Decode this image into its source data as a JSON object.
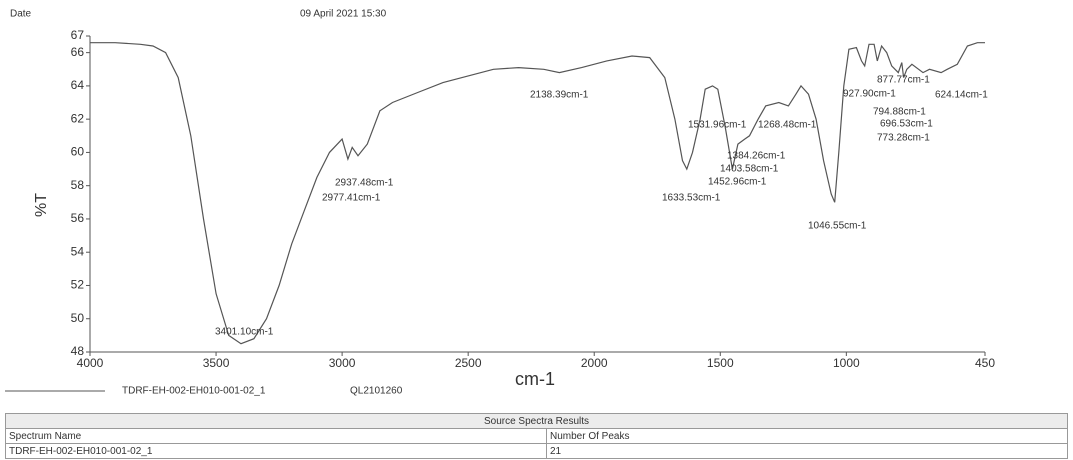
{
  "header": {
    "date_label": "Date",
    "date": "09 April 2021 15:30"
  },
  "chart_data": {
    "type": "line",
    "xlabel": "cm-1",
    "ylabel": "%T",
    "xlim": [
      4000,
      450
    ],
    "ylim": [
      48,
      67
    ],
    "xticks": [
      4000,
      3500,
      3000,
      2500,
      2000,
      1500,
      1000,
      450
    ],
    "yticks": [
      48,
      50,
      52,
      54,
      56,
      58,
      60,
      62,
      64,
      66,
      67
    ],
    "x": [
      4000,
      3900,
      3800,
      3750,
      3700,
      3650,
      3600,
      3550,
      3500,
      3450,
      3401,
      3350,
      3300,
      3250,
      3200,
      3150,
      3100,
      3050,
      3000,
      2977,
      2960,
      2937,
      2900,
      2850,
      2800,
      2700,
      2600,
      2500,
      2400,
      2300,
      2200,
      2138,
      2050,
      1950,
      1850,
      1780,
      1720,
      1680,
      1650,
      1633,
      1610,
      1580,
      1560,
      1531,
      1510,
      1480,
      1452,
      1430,
      1403,
      1384,
      1350,
      1320,
      1268,
      1230,
      1200,
      1180,
      1150,
      1120,
      1090,
      1060,
      1046,
      1030,
      1010,
      990,
      960,
      940,
      927,
      910,
      890,
      877,
      860,
      840,
      820,
      794,
      780,
      773,
      760,
      740,
      696,
      670,
      624,
      600,
      560,
      520,
      480,
      450
    ],
    "series": [
      {
        "name": "TDRF-EH-002-EH010-001-02_1",
        "color": "#555555",
        "values": [
          66.6,
          66.6,
          66.5,
          66.4,
          66.0,
          64.5,
          61,
          56,
          51.5,
          49,
          48.5,
          48.8,
          50,
          52,
          54.5,
          56.5,
          58.5,
          60,
          60.8,
          59.6,
          60.3,
          59.8,
          60.5,
          62.5,
          63,
          63.6,
          64.2,
          64.6,
          65,
          65.1,
          65,
          64.8,
          65.1,
          65.5,
          65.8,
          65.7,
          64.5,
          62,
          59.5,
          59,
          60,
          62,
          63.8,
          64,
          63.8,
          61.5,
          59,
          60.5,
          60.8,
          61,
          62,
          62.8,
          63,
          62.8,
          63.5,
          64,
          63.5,
          62,
          59.5,
          57.5,
          57,
          60,
          64,
          66.2,
          66.3,
          65.5,
          65.2,
          66.5,
          66.5,
          65.5,
          66.4,
          66,
          65.2,
          64.8,
          65.4,
          64.5,
          65,
          65.3,
          64.8,
          65,
          64.8,
          65,
          65.3,
          66.4,
          66.6,
          66.6
        ]
      }
    ],
    "legend_extra": "QL2101260",
    "annotations": [
      "3401.10cm-1",
      "2937.48cm-1",
      "2977.41cm-1",
      "2138.39cm-1",
      "1633.53cm-1",
      "1531.96cm-1",
      "1268.48cm-1",
      "1384.26cm-1",
      "1403.58cm-1",
      "1452.96cm-1",
      "1046.55cm-1",
      "877.77cm-1",
      "927.90cm-1",
      "624.14cm-1",
      "794.88cm-1",
      "696.53cm-1",
      "773.28cm-1"
    ]
  },
  "table": {
    "title": "Source Spectra Results",
    "header": [
      "Spectrum Name",
      "Number Of Peaks"
    ],
    "rows": [
      [
        "TDRF-EH-002-EH010-001-02_1",
        "21"
      ]
    ]
  }
}
